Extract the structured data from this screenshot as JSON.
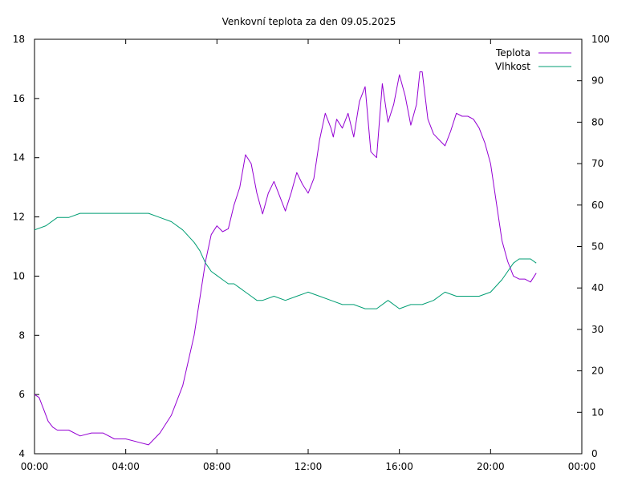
{
  "chart_data": {
    "type": "line",
    "title": "Venkovní teplota za den 09.05.2025",
    "x_range_hours": [
      0,
      24
    ],
    "x_ticks": [
      "00:00",
      "04:00",
      "08:00",
      "12:00",
      "16:00",
      "20:00",
      "00:00"
    ],
    "y1_range": [
      4,
      18
    ],
    "y1_ticks": [
      "4",
      "6",
      "8",
      "10",
      "12",
      "14",
      "16",
      "18"
    ],
    "y2_range": [
      0,
      100
    ],
    "y2_ticks": [
      "0",
      "10",
      "20",
      "30",
      "40",
      "50",
      "60",
      "70",
      "80",
      "90",
      "100"
    ],
    "grid": false,
    "legend_position": "top-right",
    "series": [
      {
        "name": "Teplota",
        "axis": "left",
        "color": "#9400d3",
        "x": [
          0.0,
          0.2,
          0.4,
          0.6,
          0.8,
          1.0,
          1.5,
          2.0,
          2.5,
          3.0,
          3.5,
          4.0,
          4.5,
          5.0,
          5.5,
          6.0,
          6.5,
          7.0,
          7.2,
          7.5,
          7.75,
          8.0,
          8.25,
          8.5,
          8.75,
          9.0,
          9.25,
          9.5,
          9.75,
          10.0,
          10.25,
          10.5,
          10.75,
          11.0,
          11.25,
          11.5,
          11.75,
          12.0,
          12.25,
          12.5,
          12.75,
          13.0,
          13.1,
          13.25,
          13.5,
          13.75,
          14.0,
          14.25,
          14.5,
          14.75,
          15.0,
          15.25,
          15.5,
          15.75,
          16.0,
          16.25,
          16.5,
          16.75,
          16.9,
          17.0,
          17.25,
          17.5,
          17.75,
          18.0,
          18.25,
          18.5,
          18.75,
          19.0,
          19.25,
          19.5,
          19.75,
          20.0,
          20.25,
          20.5,
          20.75,
          21.0,
          21.25,
          21.5,
          21.75,
          22.0
        ],
        "y": [
          6.0,
          5.9,
          5.5,
          5.1,
          4.9,
          4.8,
          4.8,
          4.6,
          4.7,
          4.7,
          4.5,
          4.5,
          4.4,
          4.3,
          4.7,
          5.3,
          6.3,
          8.0,
          9.0,
          10.5,
          11.4,
          11.7,
          11.5,
          11.6,
          12.4,
          13.0,
          14.1,
          13.8,
          12.8,
          12.1,
          12.8,
          13.2,
          12.7,
          12.2,
          12.8,
          13.5,
          13.1,
          12.8,
          13.3,
          14.6,
          15.5,
          15.0,
          14.7,
          15.3,
          15.0,
          15.5,
          14.7,
          15.9,
          16.4,
          14.2,
          14.0,
          16.5,
          15.2,
          15.8,
          16.8,
          16.1,
          15.1,
          15.8,
          16.9,
          16.9,
          15.3,
          14.8,
          14.6,
          14.4,
          14.9,
          15.5,
          15.4,
          15.4,
          15.3,
          15.0,
          14.5,
          13.8,
          12.5,
          11.2,
          10.5,
          10.0,
          9.9,
          9.9,
          9.8,
          10.1
        ]
      },
      {
        "name": "Vlhkost",
        "axis": "right",
        "color": "#009e73",
        "x": [
          0.0,
          0.5,
          1.0,
          1.5,
          2.0,
          2.5,
          3.0,
          3.5,
          4.0,
          4.5,
          5.0,
          5.5,
          6.0,
          6.5,
          7.0,
          7.25,
          7.5,
          7.75,
          8.0,
          8.25,
          8.5,
          8.75,
          9.0,
          9.25,
          9.5,
          9.75,
          10.0,
          10.5,
          11.0,
          11.5,
          12.0,
          12.5,
          13.0,
          13.5,
          14.0,
          14.5,
          15.0,
          15.5,
          16.0,
          16.5,
          17.0,
          17.5,
          18.0,
          18.5,
          19.0,
          19.5,
          20.0,
          20.5,
          21.0,
          21.25,
          21.5,
          21.75,
          22.0
        ],
        "y": [
          54,
          55,
          57,
          57,
          58,
          58,
          58,
          58,
          58,
          58,
          58,
          57,
          56,
          54,
          51,
          49,
          46,
          44,
          43,
          42,
          41,
          41,
          40,
          39,
          38,
          37,
          37,
          38,
          37,
          38,
          39,
          38,
          37,
          36,
          36,
          35,
          35,
          37,
          35,
          36,
          36,
          37,
          39,
          38,
          38,
          38,
          39,
          42,
          46,
          47,
          47,
          47,
          46
        ]
      }
    ]
  }
}
